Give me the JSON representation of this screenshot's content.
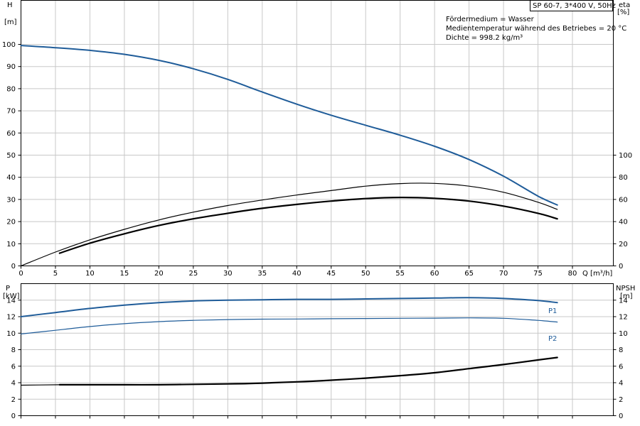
{
  "pump_label": "SP 60-7, 3*400 V, 50Hz",
  "medium_info": [
    "Fördermedium = Wasser",
    "Medientemperatur während des Betriebes = 20 °C",
    "Dichte = 998.2 kg/m³"
  ],
  "chart_data": [
    {
      "type": "line",
      "xlabel": "Q [m³/h]",
      "ylabel": [
        "H",
        "[m]"
      ],
      "y2label": [
        "eta",
        "[%]"
      ],
      "xlim": [
        0,
        80
      ],
      "ylim": [
        0,
        100
      ],
      "y2lim": [
        0,
        100
      ],
      "xticks": [
        0,
        5,
        10,
        15,
        20,
        25,
        30,
        35,
        40,
        45,
        50,
        55,
        60,
        65,
        70,
        75,
        80
      ],
      "yticks": [
        0,
        10,
        20,
        30,
        40,
        50,
        60,
        70,
        80,
        90,
        100
      ],
      "y2ticks": [
        0,
        20,
        40,
        60,
        80,
        100
      ],
      "grid": true,
      "series": [
        {
          "axis": "left",
          "color": "#1f5c99",
          "width": 2,
          "x": [
            0,
            5,
            10,
            15,
            20,
            25,
            30,
            35,
            40,
            45,
            50,
            55,
            60,
            65,
            70,
            75,
            77.8
          ],
          "values": [
            99.5,
            98.5,
            97.3,
            95.5,
            92.8,
            89,
            84.2,
            78.5,
            73,
            68,
            63.5,
            59,
            54,
            48,
            40.5,
            31.5,
            27.5
          ]
        },
        {
          "axis": "right",
          "color": "#000000",
          "width": 1.2,
          "x": [
            0,
            5,
            10,
            15,
            20,
            25,
            30,
            35,
            40,
            45,
            50,
            55,
            60,
            65,
            70,
            75,
            77.8
          ],
          "values": [
            0,
            12.5,
            23.5,
            33,
            41.5,
            48.5,
            54.5,
            59.5,
            64,
            68,
            72,
            74.3,
            74.5,
            72,
            66.5,
            57.5,
            51
          ]
        },
        {
          "axis": "right",
          "color": "#000000",
          "width": 2.2,
          "x": [
            5.6,
            10,
            15,
            20,
            25,
            30,
            35,
            40,
            45,
            50,
            55,
            60,
            65,
            70,
            75,
            77.8
          ],
          "values": [
            11.5,
            20.5,
            29,
            36.5,
            42.5,
            47.5,
            52,
            55.5,
            58.5,
            60.8,
            61.8,
            61,
            58.5,
            54,
            47.5,
            42.5
          ]
        }
      ]
    },
    {
      "type": "line",
      "xlim": [
        0,
        80
      ],
      "ylabel": [
        "P",
        "[kW]"
      ],
      "y2label": [
        "NPSH",
        "[m]"
      ],
      "ylim": [
        0,
        16
      ],
      "y2lim": [
        0,
        16
      ],
      "yticks": [
        0,
        2,
        4,
        6,
        8,
        10,
        12,
        14
      ],
      "y2ticks": [
        0,
        2,
        4,
        6,
        8,
        10,
        12,
        14
      ],
      "grid": true,
      "series": [
        {
          "name": "P1",
          "axis": "left",
          "color": "#1f5c99",
          "width": 2,
          "x": [
            0,
            5,
            10,
            15,
            20,
            25,
            30,
            35,
            40,
            45,
            50,
            55,
            60,
            65,
            70,
            75,
            77.8
          ],
          "values": [
            12.0,
            12.5,
            13.0,
            13.4,
            13.7,
            13.9,
            14.0,
            14.05,
            14.1,
            14.1,
            14.15,
            14.2,
            14.25,
            14.3,
            14.2,
            13.95,
            13.7
          ]
        },
        {
          "name": "P2",
          "axis": "left",
          "color": "#1f5c99",
          "width": 1.2,
          "x": [
            0,
            5,
            10,
            15,
            20,
            25,
            30,
            35,
            40,
            45,
            50,
            55,
            60,
            65,
            70,
            75,
            77.8
          ],
          "values": [
            9.9,
            10.35,
            10.8,
            11.15,
            11.4,
            11.55,
            11.65,
            11.7,
            11.72,
            11.75,
            11.78,
            11.8,
            11.82,
            11.85,
            11.8,
            11.55,
            11.35
          ]
        },
        {
          "axis": "right",
          "color": "#000000",
          "width": 1.2,
          "x": [
            0,
            5.6
          ],
          "values": [
            3.7,
            3.75
          ]
        },
        {
          "axis": "right",
          "color": "#000000",
          "width": 2.2,
          "x": [
            5.6,
            10,
            15,
            20,
            25,
            30,
            35,
            40,
            45,
            50,
            55,
            60,
            65,
            70,
            75,
            77.8
          ],
          "values": [
            3.75,
            3.75,
            3.75,
            3.75,
            3.8,
            3.85,
            3.95,
            4.1,
            4.3,
            4.55,
            4.85,
            5.2,
            5.7,
            6.2,
            6.75,
            7.05
          ]
        }
      ]
    }
  ]
}
